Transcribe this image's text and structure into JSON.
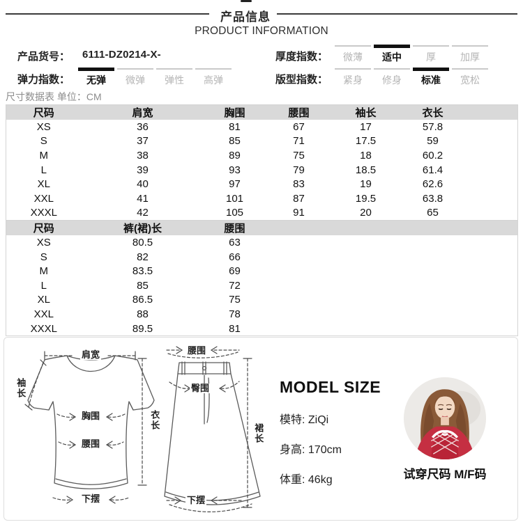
{
  "header": {
    "title_cn": "产品信息",
    "title_en": "PRODUCT INFORMATION"
  },
  "product_code": {
    "label": "产品货号：",
    "value": "6111-DZ0214-X-"
  },
  "thickness": {
    "label": "厚度指数：",
    "options": [
      "微薄",
      "适中",
      "厚",
      "加厚"
    ],
    "selected": 1
  },
  "elasticity": {
    "label": "弹力指数：",
    "options": [
      "无弹",
      "微弹",
      "弹性",
      "高弹"
    ],
    "selected": 0
  },
  "fit": {
    "label": "版型指数：",
    "options": [
      "紧身",
      "修身",
      "标准",
      "宽松"
    ],
    "selected": 2
  },
  "unit_note": "尺寸数据表 单位：CM",
  "table_top": {
    "columns": [
      "尺码",
      "肩宽",
      "胸围",
      "腰围",
      "袖长",
      "衣长"
    ],
    "rows": [
      [
        "XS",
        "36",
        "81",
        "67",
        "17",
        "57.8"
      ],
      [
        "S",
        "37",
        "85",
        "71",
        "17.5",
        "59"
      ],
      [
        "M",
        "38",
        "89",
        "75",
        "18",
        "60.2"
      ],
      [
        "L",
        "39",
        "93",
        "79",
        "18.5",
        "61.4"
      ],
      [
        "XL",
        "40",
        "97",
        "83",
        "19",
        "62.6"
      ],
      [
        "XXL",
        "41",
        "101",
        "87",
        "19.5",
        "63.8"
      ],
      [
        "XXXL",
        "42",
        "105",
        "91",
        "20",
        "65"
      ]
    ]
  },
  "table_bottom": {
    "columns": [
      "尺码",
      "裤(裙)长",
      "腰围"
    ],
    "rows": [
      [
        "XS",
        "80.5",
        "63"
      ],
      [
        "S",
        "82",
        "66"
      ],
      [
        "M",
        "83.5",
        "69"
      ],
      [
        "L",
        "85",
        "72"
      ],
      [
        "XL",
        "86.5",
        "75"
      ],
      [
        "XXL",
        "88",
        "78"
      ],
      [
        "XXXL",
        "89.5",
        "81"
      ]
    ]
  },
  "diagrams": {
    "shirt": {
      "shoulder": "肩宽",
      "sleeve": "袖长",
      "chest": "胸围",
      "waist": "腰围",
      "hem": "下摆",
      "length": "衣长"
    },
    "skirt": {
      "waist": "腰围",
      "hip": "臀围",
      "hem": "下摆",
      "length": "裙长"
    }
  },
  "model": {
    "heading": "MODEL SIZE",
    "lines": [
      "模特: ZiQi",
      "身高: 170cm",
      "体重: 46kg"
    ],
    "fit_note": "试穿尺码 M/F码"
  },
  "colors": {
    "selected_bar": "#111111",
    "unselected_text": "#b5b5b5",
    "table_header_bg": "#d9d9d9",
    "model_top_red": "#c52f42"
  }
}
